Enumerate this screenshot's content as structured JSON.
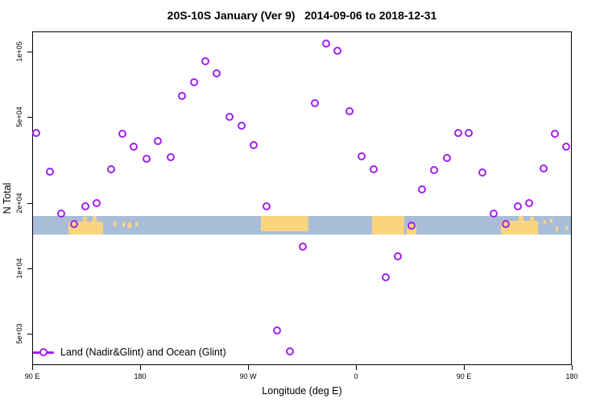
{
  "chart_data": {
    "type": "scatter",
    "title": "20S-10S January (Ver 9)   2014-09-06 to 2018-12-31",
    "xlabel": "Longitude (deg E)",
    "ylabel": "N Total",
    "x_axis": {
      "note": "longitude axis starting at 90E and wrapping eastward 450 degrees",
      "range_deg_from_start": [
        0,
        450
      ],
      "ticks": [
        {
          "deg": 0,
          "label": "90 E"
        },
        {
          "deg": 90,
          "label": "180"
        },
        {
          "deg": 180,
          "label": "90 W"
        },
        {
          "deg": 270,
          "label": "0"
        },
        {
          "deg": 360,
          "label": "90 E"
        },
        {
          "deg": 450,
          "label": "180"
        }
      ]
    },
    "y_axis": {
      "scale": "log10",
      "ylim": [
        3587,
        124000
      ],
      "ticks": [
        {
          "value": 100000,
          "label": "1e+05"
        },
        {
          "value": 50000,
          "label": "5e+04"
        },
        {
          "value": 20000,
          "label": "2e+04"
        },
        {
          "value": 10000,
          "label": "1e+04"
        },
        {
          "value": 5000,
          "label": "5e+03"
        }
      ],
      "grid": false
    },
    "legend": {
      "label": "Land (Nadir&Glint) and Ocean (Glint)",
      "marker": "open-circle-on-line",
      "position": "bottom-left"
    },
    "colors": {
      "point": "#A020F0",
      "ocean": "#A9BDD9",
      "land": "#FAD57E",
      "axis": "#000000"
    },
    "map_strip": {
      "description": "20S-10S latitude world-map reference band (ocean with land masses)",
      "value_top": 17500,
      "value_bottom": 14300,
      "land_segments": [
        {
          "name": "australia",
          "deg": [
            30.2,
            59.1
          ],
          "y": [
            0.32,
            1
          ]
        },
        {
          "name": "australia-peak-1",
          "deg": [
            42.0,
            46.0
          ],
          "y": [
            0.05,
            0.35
          ]
        },
        {
          "name": "australia-peak-2",
          "deg": [
            50.5,
            53.5
          ],
          "y": [
            0.0,
            0.35
          ]
        },
        {
          "name": "island-vanuatu",
          "deg": [
            67.9,
            69.9
          ],
          "y": [
            0.25,
            0.55
          ]
        },
        {
          "name": "island-fiji",
          "deg": [
            75.2,
            77.5
          ],
          "y": [
            0.3,
            0.6
          ]
        },
        {
          "name": "island-3",
          "deg": [
            79.9,
            82.3
          ],
          "y": [
            0.35,
            0.65
          ]
        },
        {
          "name": "island-4",
          "deg": [
            86.0,
            88.3
          ],
          "y": [
            0.3,
            0.55
          ]
        },
        {
          "name": "south-america",
          "deg": [
            190.7,
            230.4
          ],
          "y": [
            0,
            0.82
          ]
        },
        {
          "name": "africa",
          "deg": [
            283.4,
            310.3
          ],
          "y": [
            0,
            1
          ]
        },
        {
          "name": "madagascar",
          "deg": [
            312.3,
            320.4
          ],
          "y": [
            0.45,
            1
          ]
        },
        {
          "name": "australia-2",
          "deg": [
            390.9,
            421.8
          ],
          "y": [
            0.28,
            1
          ]
        },
        {
          "name": "australia-2-peak-1",
          "deg": [
            406.0,
            409.5
          ],
          "y": [
            0.0,
            0.3
          ]
        },
        {
          "name": "australia-2-peak-2",
          "deg": [
            415.0,
            418.5
          ],
          "y": [
            0.05,
            0.3
          ]
        },
        {
          "name": "island-5",
          "deg": [
            426.5,
            428.5
          ],
          "y": [
            0.2,
            0.45
          ]
        },
        {
          "name": "island-6",
          "deg": [
            431.9,
            433.9
          ],
          "y": [
            0.15,
            0.4
          ]
        },
        {
          "name": "island-7",
          "deg": [
            436.6,
            438.8
          ],
          "y": [
            0.55,
            0.8
          ]
        },
        {
          "name": "island-8",
          "deg": [
            444.6,
            446.8
          ],
          "y": [
            0.5,
            0.75
          ]
        }
      ]
    },
    "points": [
      {
        "deg": 3.6,
        "n": 42100
      },
      {
        "deg": 14.8,
        "n": 27900
      },
      {
        "deg": 24.2,
        "n": 17900
      },
      {
        "deg": 34.7,
        "n": 16100
      },
      {
        "deg": 44.5,
        "n": 19300
      },
      {
        "deg": 53.7,
        "n": 20100
      },
      {
        "deg": 65.6,
        "n": 28700
      },
      {
        "deg": 75.2,
        "n": 41800
      },
      {
        "deg": 84.8,
        "n": 36500
      },
      {
        "deg": 95.6,
        "n": 32200
      },
      {
        "deg": 104.6,
        "n": 38600
      },
      {
        "deg": 115.3,
        "n": 32600
      },
      {
        "deg": 125.1,
        "n": 62600
      },
      {
        "deg": 135.2,
        "n": 72600
      },
      {
        "deg": 144.6,
        "n": 90400
      },
      {
        "deg": 154.0,
        "n": 79800
      },
      {
        "deg": 164.5,
        "n": 50000
      },
      {
        "deg": 174.6,
        "n": 45600
      },
      {
        "deg": 184.9,
        "n": 37100
      },
      {
        "deg": 195.2,
        "n": 19400
      },
      {
        "deg": 204.2,
        "n": 5200
      },
      {
        "deg": 214.9,
        "n": 4140
      },
      {
        "deg": 225.5,
        "n": 12600
      },
      {
        "deg": 235.7,
        "n": 58100
      },
      {
        "deg": 245.1,
        "n": 109000
      },
      {
        "deg": 254.3,
        "n": 101000
      },
      {
        "deg": 264.4,
        "n": 53300
      },
      {
        "deg": 274.9,
        "n": 33000
      },
      {
        "deg": 284.8,
        "n": 28700
      },
      {
        "deg": 295.0,
        "n": 9130
      },
      {
        "deg": 305.1,
        "n": 11400
      },
      {
        "deg": 316.2,
        "n": 15700
      },
      {
        "deg": 324.9,
        "n": 23200
      },
      {
        "deg": 335.4,
        "n": 28500
      },
      {
        "deg": 346.1,
        "n": 32300
      },
      {
        "deg": 355.3,
        "n": 42200
      },
      {
        "deg": 364.0,
        "n": 42200
      },
      {
        "deg": 375.4,
        "n": 27800
      },
      {
        "deg": 385.1,
        "n": 17900
      },
      {
        "deg": 395.2,
        "n": 16100
      },
      {
        "deg": 404.8,
        "n": 19400
      },
      {
        "deg": 414.2,
        "n": 20000
      },
      {
        "deg": 426.3,
        "n": 28900
      },
      {
        "deg": 435.7,
        "n": 42000
      },
      {
        "deg": 445.3,
        "n": 36600
      }
    ]
  }
}
